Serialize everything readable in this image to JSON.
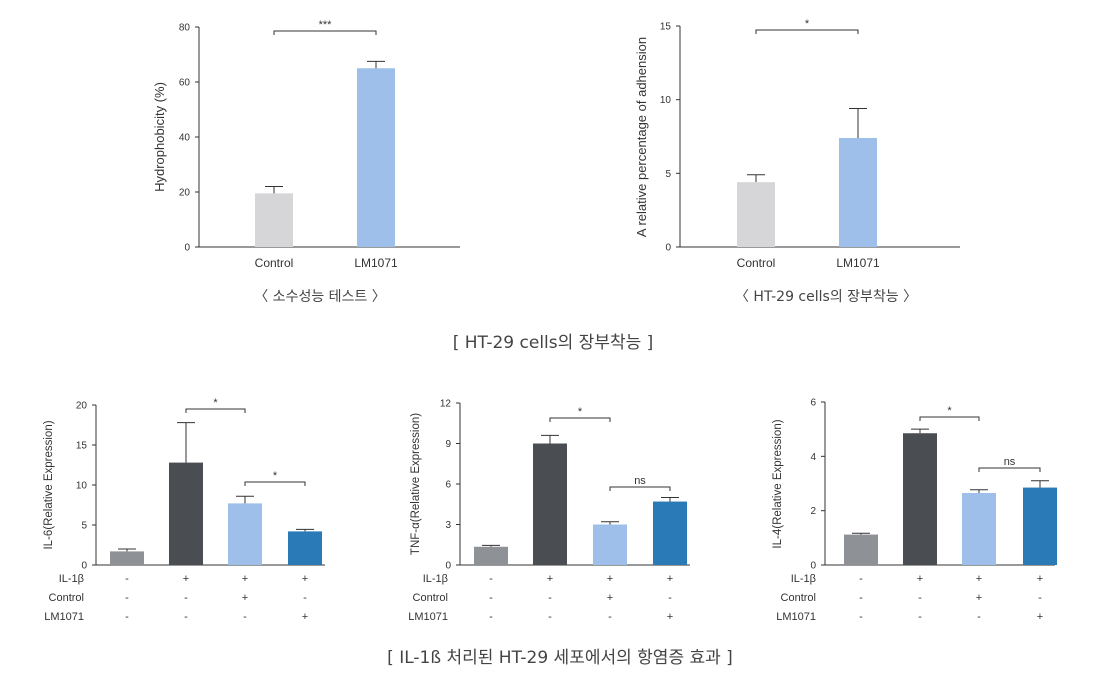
{
  "captions": {
    "hydro": "〈 소수성능 테스트 〉",
    "adhesion": "〈 HT-29 cells의 장부착능 〉",
    "section1": "[ HT-29 cells의 장부착능 ]",
    "section2": "[ IL-1ß 처리된 HT-29 세포에서의 항염증 효과 ]"
  },
  "colors": {
    "light_gray": "#d6d6d8",
    "light_blue": "#9dbfe9",
    "dark_gray": "#4a4d52",
    "mid_gray": "#8e9195",
    "blue": "#2a7ab8"
  },
  "chart_data": [
    {
      "id": "hydro",
      "type": "bar",
      "ylabel": "Hydrophobicity (%)",
      "ylim": [
        0,
        80
      ],
      "yticks": [
        0,
        20,
        40,
        60,
        80
      ],
      "categories": [
        "Control",
        "LM1071"
      ],
      "values": [
        19.5,
        65
      ],
      "errors": [
        2.5,
        2.5
      ],
      "bar_colors": [
        "#d6d6d8",
        "#9dbfe9"
      ],
      "significance": [
        {
          "from": 0,
          "to": 1,
          "label": "***"
        }
      ]
    },
    {
      "id": "adhesion",
      "type": "bar",
      "ylabel": "A relative percentage of adhension",
      "ylim": [
        0,
        15
      ],
      "yticks": [
        0,
        5,
        10,
        15
      ],
      "categories": [
        "Control",
        "LM1071"
      ],
      "values": [
        4.4,
        7.4
      ],
      "errors": [
        0.5,
        2.0
      ],
      "bar_colors": [
        "#d6d6d8",
        "#9dbfe9"
      ],
      "significance": [
        {
          "from": 0,
          "to": 1,
          "label": "*"
        }
      ]
    },
    {
      "id": "il6",
      "type": "bar",
      "ylabel": "IL-6(Relative Expression)",
      "ylim": [
        0,
        20
      ],
      "yticks": [
        0,
        5,
        10,
        15,
        20
      ],
      "values": [
        1.7,
        12.8,
        7.7,
        4.2
      ],
      "errors": [
        0.3,
        5.0,
        0.9,
        0.25
      ],
      "bar_colors": [
        "#8e9195",
        "#4a4d52",
        "#9dbfe9",
        "#2a7ab8"
      ],
      "significance": [
        {
          "from": 1,
          "to": 2,
          "label": "*"
        },
        {
          "from": 2,
          "to": 3,
          "label": "*"
        }
      ],
      "table": [
        {
          "label": "IL-1β",
          "marks": [
            "-",
            "+",
            "+",
            "+"
          ]
        },
        {
          "label": "Control",
          "marks": [
            "-",
            "-",
            "+",
            "-"
          ]
        },
        {
          "label": "LM1071",
          "marks": [
            "-",
            "-",
            "-",
            "+"
          ]
        }
      ]
    },
    {
      "id": "tnf",
      "type": "bar",
      "ylabel": "TNF-α(Relative Expression)",
      "ylim": [
        0,
        12
      ],
      "yticks": [
        0,
        3,
        6,
        9,
        12
      ],
      "values": [
        1.35,
        9.0,
        3.0,
        4.7
      ],
      "errors": [
        0.1,
        0.6,
        0.2,
        0.3
      ],
      "bar_colors": [
        "#8e9195",
        "#4a4d52",
        "#9dbfe9",
        "#2a7ab8"
      ],
      "significance": [
        {
          "from": 1,
          "to": 2,
          "label": "*"
        },
        {
          "from": 2,
          "to": 3,
          "label": "ns"
        }
      ],
      "table": [
        {
          "label": "IL-1β",
          "marks": [
            "-",
            "+",
            "+",
            "+"
          ]
        },
        {
          "label": "Control",
          "marks": [
            "-",
            "-",
            "+",
            "-"
          ]
        },
        {
          "label": "LM1071",
          "marks": [
            "-",
            "-",
            "-",
            "+"
          ]
        }
      ]
    },
    {
      "id": "il4",
      "type": "bar",
      "ylabel": "IL-4(Relative Expression)",
      "ylim": [
        0,
        6
      ],
      "yticks": [
        0,
        2,
        4,
        6
      ],
      "values": [
        1.12,
        4.85,
        2.65,
        2.85
      ],
      "errors": [
        0.05,
        0.15,
        0.12,
        0.25
      ],
      "bar_colors": [
        "#8e9195",
        "#4a4d52",
        "#9dbfe9",
        "#2a7ab8"
      ],
      "significance": [
        {
          "from": 1,
          "to": 2,
          "label": "*"
        },
        {
          "from": 2,
          "to": 3,
          "label": "ns"
        }
      ],
      "table": [
        {
          "label": "IL-1β",
          "marks": [
            "-",
            "+",
            "+",
            "+"
          ]
        },
        {
          "label": "Control",
          "marks": [
            "-",
            "-",
            "+",
            "-"
          ]
        },
        {
          "label": "LM1071",
          "marks": [
            "-",
            "-",
            "-",
            "+"
          ]
        }
      ]
    }
  ]
}
